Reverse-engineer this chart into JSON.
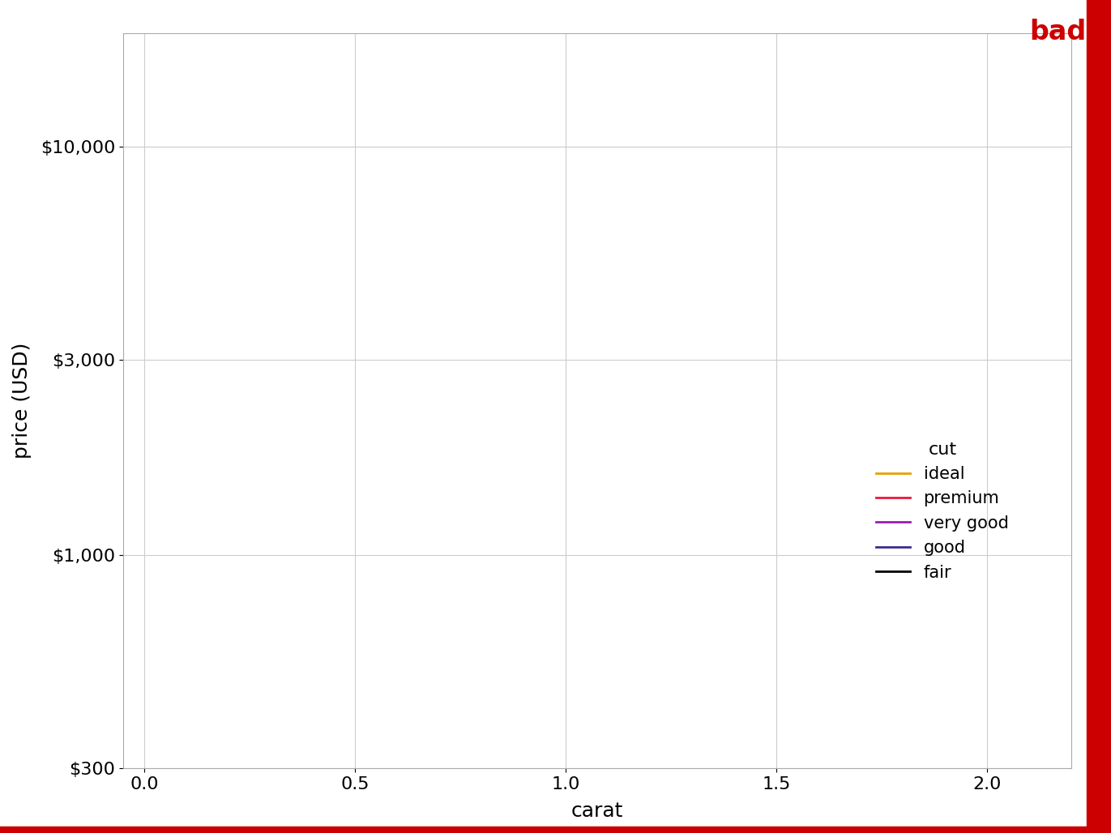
{
  "cuts": [
    "ideal",
    "premium",
    "very good",
    "good",
    "fair"
  ],
  "colors": {
    "ideal": "#E8A000",
    "premium": "#E8183C",
    "very good": "#9B1DB5",
    "good": "#3B2D8F",
    "fair": "#000000"
  },
  "legend_labels": [
    "ideal",
    "premium",
    "very good",
    "good",
    "fair"
  ],
  "title": "bad",
  "title_color": "#CC0000",
  "xlabel": "carat",
  "ylabel": "price (USD)",
  "xlim": [
    -0.05,
    2.2
  ],
  "ylim_log": [
    300,
    19000
  ],
  "yticks": [
    300,
    1000,
    3000,
    10000
  ],
  "ytick_labels": [
    "$300",
    "$1,000",
    "$3,000",
    "$10,000"
  ],
  "xticks": [
    0.0,
    0.5,
    1.0,
    1.5,
    2.0
  ],
  "n_contour_levels": 8,
  "background_color": "#ffffff",
  "grid_color": "#cccccc",
  "border_color": "#cc0000",
  "bw_method": 0.15
}
